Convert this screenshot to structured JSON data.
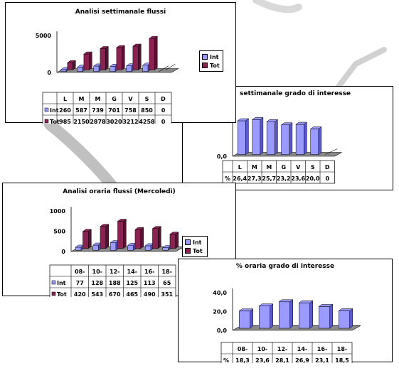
{
  "colors": {
    "int": "#9a9aff",
    "int_side": "#5a5acc",
    "tot": "#8a2252",
    "tot_side": "#5a1034",
    "floor": "#8a8a8a",
    "pencil": "#777777"
  },
  "chart_data": [
    {
      "id": "weekly-flows",
      "type": "bar",
      "title": "Analisi settimanale flussi",
      "categories": [
        "L",
        "M",
        "M",
        "G",
        "V",
        "S",
        "D"
      ],
      "series": [
        {
          "name": "Int",
          "values": [
            260,
            587,
            739,
            701,
            758,
            850,
            0
          ],
          "labels": [
            "260",
            "587",
            "739",
            "701",
            "758",
            "850",
            "0"
          ]
        },
        {
          "name": "Tot",
          "values": [
            985,
            2150,
            2878,
            3020,
            3212,
            4258,
            0
          ],
          "labels": [
            "985",
            "2150",
            "2878",
            "3020",
            "3212",
            "4258",
            "0"
          ]
        }
      ],
      "ylim": [
        0,
        5000
      ],
      "yticks": [
        "0",
        "5000"
      ],
      "legend": "right"
    },
    {
      "id": "weekly-interest",
      "type": "bar",
      "title": "settimanale grado di interesse",
      "categories": [
        "L",
        "M",
        "M",
        "G",
        "V",
        "S",
        "D"
      ],
      "series": [
        {
          "name": "%",
          "values": [
            26.4,
            27.3,
            25.7,
            23.2,
            23.6,
            20.0,
            0
          ],
          "labels": [
            "26,4",
            "27,3",
            "25,7",
            "23,2",
            "23,6",
            "20,0",
            "0"
          ]
        }
      ],
      "ylim": [
        0,
        40
      ],
      "yticks": [
        "0,0",
        "20,0"
      ]
    },
    {
      "id": "hourly-flows",
      "type": "bar",
      "title": "Analisi oraria flussi (Mercoledì)",
      "categories": [
        "08-",
        "10-",
        "12-",
        "14-",
        "16-",
        "18-"
      ],
      "series": [
        {
          "name": "Int",
          "values": [
            77,
            128,
            188,
            125,
            113,
            65
          ],
          "labels": [
            "77",
            "128",
            "188",
            "125",
            "113",
            "65"
          ]
        },
        {
          "name": "Tot",
          "values": [
            420,
            543,
            670,
            465,
            490,
            351
          ],
          "labels": [
            "420",
            "543",
            "670",
            "465",
            "490",
            "351"
          ]
        }
      ],
      "ylim": [
        0,
        1000
      ],
      "yticks": [
        "0",
        "500",
        "1000"
      ],
      "legend": "right"
    },
    {
      "id": "hourly-interest",
      "type": "bar",
      "title": "% oraria grado di interesse",
      "categories": [
        "08-",
        "10-",
        "12-",
        "14-",
        "16-",
        "18-"
      ],
      "series": [
        {
          "name": "%",
          "values": [
            18.3,
            23.6,
            28.1,
            26.9,
            23.1,
            18.5
          ],
          "labels": [
            "18,3",
            "23,6",
            "28,1",
            "26,9",
            "23,1",
            "18,5"
          ]
        }
      ],
      "ylim": [
        0,
        40
      ],
      "yticks": [
        "0,0",
        "20,0",
        "40,0"
      ]
    }
  ]
}
